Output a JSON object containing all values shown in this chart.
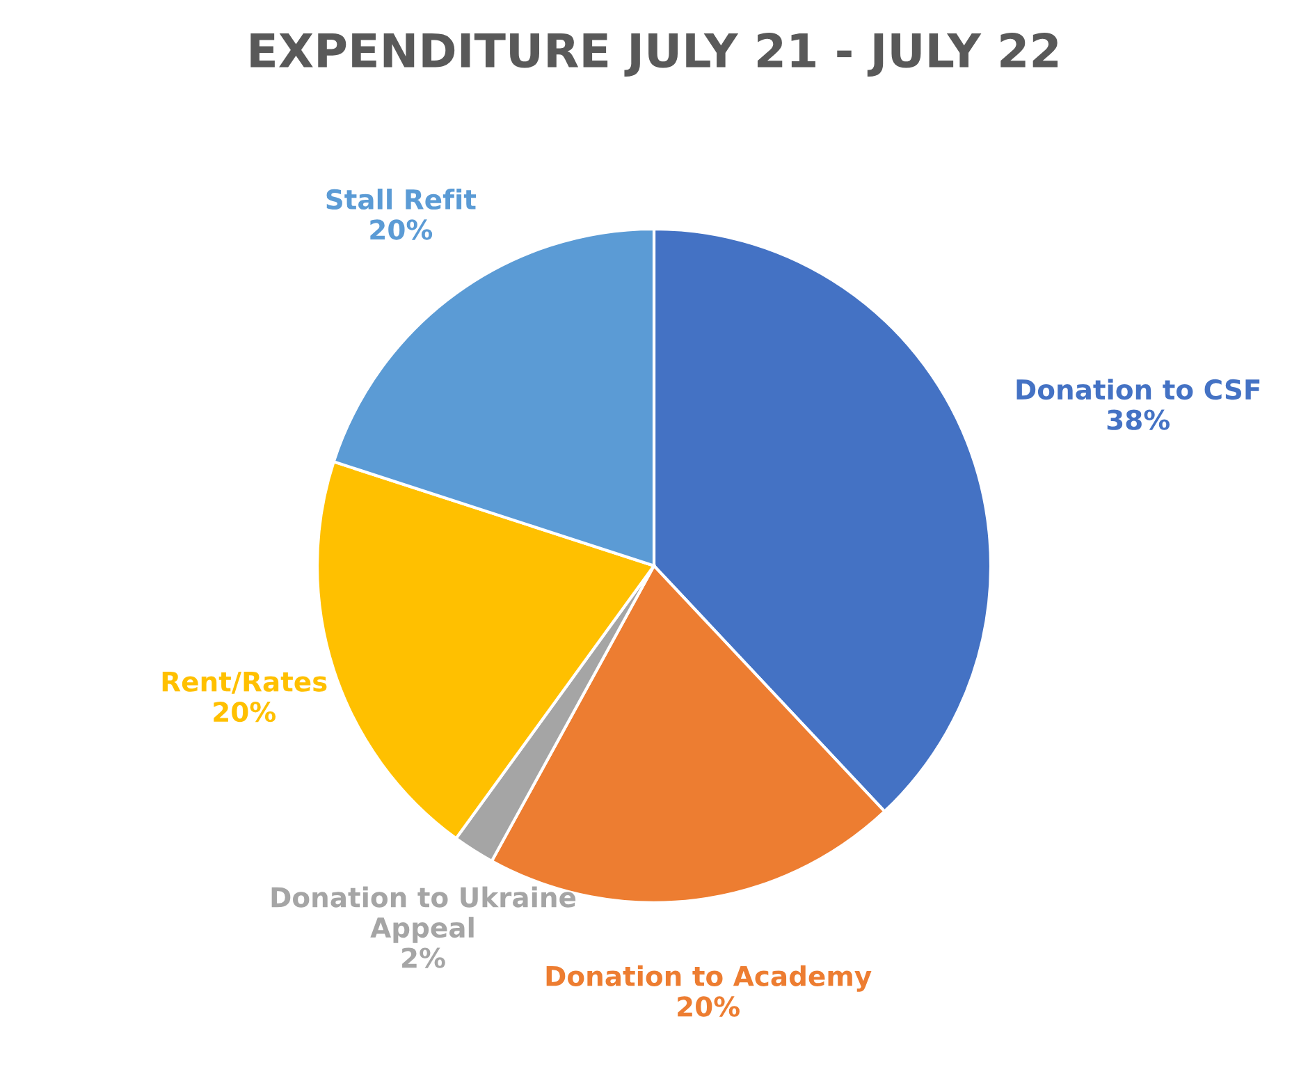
{
  "chart_data": {
    "type": "pie",
    "title": "EXPENDITURE JULY 21 - JULY 22",
    "categories": [
      "Donation to CSF",
      "Donation to Academy",
      "Donation to Ukraine\nAppeal",
      "Rent/Rates",
      "Stall Refit"
    ],
    "values": [
      38,
      20,
      2,
      20,
      20
    ],
    "colors": [
      "#4472c4",
      "#ed7d31",
      "#a5a5a5",
      "#ffc000",
      "#5b9bd5"
    ],
    "value_labels": [
      "38%",
      "20%",
      "2%",
      "20%",
      "20%"
    ]
  }
}
